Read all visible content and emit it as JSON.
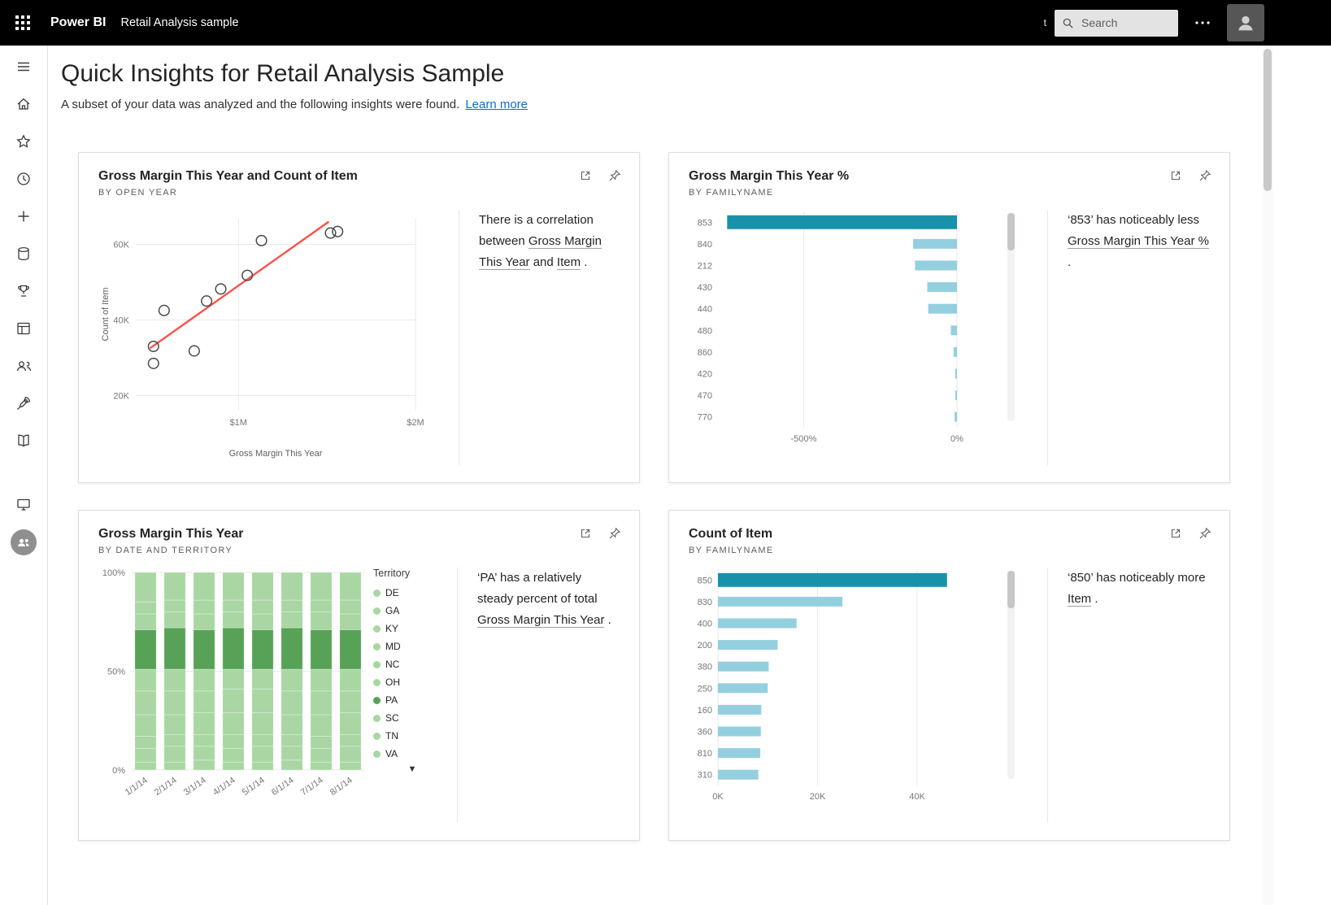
{
  "topbar": {
    "brand": "Power BI",
    "app_name": "Retail Analysis sample",
    "stray_text": "t",
    "search_placeholder": "Search"
  },
  "sidebar": {
    "items": [
      "menu",
      "home",
      "favorites",
      "recent",
      "create",
      "data-hub",
      "metrics",
      "apps",
      "shared-with-me",
      "deployment-pipelines",
      "learn"
    ],
    "bottom_items": [
      "workspaces",
      "my-workspace"
    ]
  },
  "page": {
    "title": "Quick Insights for Retail Analysis Sample",
    "subtitle": "A subset of your data was analyzed and the following insights were found.",
    "learn_more": "Learn more"
  },
  "cards": [
    {
      "title": "Gross Margin This Year and Count of Item",
      "subtitle": "BY OPEN YEAR",
      "insight": [
        {
          "text": "There is a correlation between "
        },
        {
          "text": "Gross Margin This Year",
          "link": true
        },
        {
          "text": " and "
        },
        {
          "text": "Item",
          "link": true
        },
        {
          "text": " ."
        }
      ]
    },
    {
      "title": "Gross Margin This Year %",
      "subtitle": "BY FAMILYNAME",
      "insight": [
        {
          "text": "‘853’ has noticeably less "
        },
        {
          "text": "Gross Margin This Year %",
          "link": true
        },
        {
          "text": " ."
        }
      ]
    },
    {
      "title": "Gross Margin This Year",
      "subtitle": "BY DATE AND TERRITORY",
      "insight": [
        {
          "text": "‘PA’ has a relatively steady percent of total "
        },
        {
          "text": "Gross Margin This Year",
          "link": true
        },
        {
          "text": " ."
        }
      ]
    },
    {
      "title": "Count of Item",
      "subtitle": "BY FAMILYNAME",
      "insight": [
        {
          "text": "‘850’ has noticeably more "
        },
        {
          "text": "Item",
          "link": true
        },
        {
          "text": " ."
        }
      ]
    }
  ],
  "chart_data": [
    {
      "type": "scatter",
      "title": "Gross Margin This Year and Count of Item",
      "xlabel": "Gross Margin This Year",
      "ylabel": "Count of Item",
      "xlim": [
        420000,
        2000000
      ],
      "ylim": [
        16000,
        67000
      ],
      "x_ticks": [
        {
          "v": 1000000,
          "label": "$1M"
        },
        {
          "v": 2000000,
          "label": "$2M"
        }
      ],
      "y_ticks": [
        {
          "v": 20000,
          "label": "20K"
        },
        {
          "v": 40000,
          "label": "40K"
        },
        {
          "v": 60000,
          "label": "60K"
        }
      ],
      "points": [
        [
          520000,
          28500
        ],
        [
          520000,
          33000
        ],
        [
          580000,
          42500
        ],
        [
          750000,
          31800
        ],
        [
          820000,
          45000
        ],
        [
          900000,
          48200
        ],
        [
          1050000,
          51800
        ],
        [
          1130000,
          61000
        ],
        [
          1520000,
          63000
        ],
        [
          1560000,
          63400
        ]
      ],
      "trendline": [
        [
          500000,
          32500
        ],
        [
          1510000,
          66000
        ]
      ],
      "point_color": "#4a4a4a",
      "trend_color": "#fc4f49",
      "grid": true
    },
    {
      "type": "bar",
      "orientation": "horizontal",
      "title": "Gross Margin This Year %",
      "categories": [
        "853",
        "840",
        "212",
        "430",
        "440",
        "480",
        "860",
        "420",
        "470",
        "770"
      ],
      "values": [
        -750,
        -143,
        -137,
        -97,
        -94,
        -20,
        -11,
        -6,
        -4,
        -8
      ],
      "unit": "%",
      "xlim": [
        -780,
        0
      ],
      "x_ticks": [
        {
          "v": -500,
          "label": "-500%"
        },
        {
          "v": 0,
          "label": "0%"
        }
      ],
      "highlight_index": 0,
      "highlight_color": "#1a91aa",
      "bar_color": "#94cfdf",
      "grid": true
    },
    {
      "type": "stacked-column-100",
      "title": "Gross Margin This Year",
      "legend_title": "Territory",
      "legend_position": "right",
      "categories": [
        "1/1/14",
        "2/1/14",
        "3/1/14",
        "4/1/14",
        "5/1/14",
        "6/1/14",
        "7/1/14",
        "8/1/14"
      ],
      "y_ticks": [
        {
          "v": 0,
          "label": "0%"
        },
        {
          "v": 50,
          "label": "50%"
        },
        {
          "v": 100,
          "label": "100%"
        }
      ],
      "ylim": [
        0,
        100
      ],
      "series": [
        {
          "name": "DE",
          "color": "#a9d6a3",
          "values": [
            4,
            4,
            5,
            4,
            4,
            5,
            4,
            4
          ]
        },
        {
          "name": "GA",
          "color": "#a9d6a3",
          "values": [
            7,
            8,
            7,
            7,
            8,
            7,
            7,
            8
          ]
        },
        {
          "name": "KY",
          "color": "#a9d6a3",
          "values": [
            6,
            6,
            6,
            7,
            6,
            6,
            6,
            6
          ]
        },
        {
          "name": "MD",
          "color": "#a9d6a3",
          "values": [
            11,
            10,
            11,
            11,
            11,
            10,
            11,
            11
          ]
        },
        {
          "name": "NC",
          "color": "#a9d6a3",
          "values": [
            12,
            12,
            11,
            12,
            12,
            12,
            12,
            11
          ]
        },
        {
          "name": "OH",
          "color": "#a9d6a3",
          "values": [
            11,
            11,
            11,
            10,
            10,
            11,
            11,
            11
          ]
        },
        {
          "name": "PA",
          "color": "#57a257",
          "values": [
            20,
            21,
            20,
            21,
            20,
            21,
            20,
            20
          ]
        },
        {
          "name": "SC",
          "color": "#a9d6a3",
          "values": [
            8,
            8,
            8,
            8,
            8,
            8,
            9,
            8
          ]
        },
        {
          "name": "TN",
          "color": "#a9d6a3",
          "values": [
            6,
            6,
            7,
            6,
            7,
            6,
            6,
            7
          ]
        },
        {
          "name": "VA",
          "color": "#a9d6a3",
          "values": [
            15,
            14,
            14,
            14,
            14,
            14,
            14,
            14
          ]
        }
      ],
      "grid": true
    },
    {
      "type": "bar",
      "orientation": "horizontal",
      "title": "Count of Item",
      "categories": [
        "850",
        "830",
        "400",
        "200",
        "380",
        "250",
        "160",
        "360",
        "810",
        "310"
      ],
      "values": [
        46000,
        25000,
        15800,
        12000,
        10200,
        10000,
        8700,
        8600,
        8500,
        8100
      ],
      "xlim": [
        0,
        48000
      ],
      "x_ticks": [
        {
          "v": 0,
          "label": "0K"
        },
        {
          "v": 20000,
          "label": "20K"
        },
        {
          "v": 40000,
          "label": "40K"
        }
      ],
      "highlight_index": 0,
      "highlight_color": "#1a91aa",
      "bar_color": "#94cfdf",
      "grid": true
    }
  ]
}
